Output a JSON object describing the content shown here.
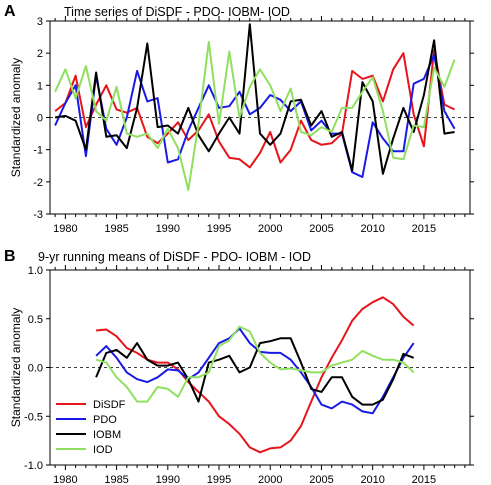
{
  "chart_data": [
    {
      "panel_label": "A",
      "title": "Time series of DiSDF - PDO- IOBM- IOD",
      "type": "line",
      "xlabel": "",
      "ylabel": "Standardized anomaly",
      "xlim": [
        1978.5,
        2019.5
      ],
      "ylim": [
        -3,
        3
      ],
      "xticks": [
        1980,
        1985,
        1990,
        1995,
        2000,
        2005,
        2010,
        2015
      ],
      "yticks": [
        -3,
        -2,
        -1,
        0,
        1,
        2,
        3
      ],
      "zero_line": "dashed",
      "x": [
        1979,
        1980,
        1981,
        1982,
        1983,
        1984,
        1985,
        1986,
        1987,
        1988,
        1989,
        1990,
        1991,
        1992,
        1993,
        1994,
        1995,
        1996,
        1997,
        1998,
        1999,
        2000,
        2001,
        2002,
        2003,
        2004,
        2005,
        2006,
        2007,
        2008,
        2009,
        2010,
        2011,
        2012,
        2013,
        2014,
        2015,
        2016,
        2017,
        2018
      ],
      "series": [
        {
          "name": "DiSDF",
          "color": "#e8141c",
          "values": [
            0.2,
            0.45,
            1.3,
            -0.3,
            0.4,
            1.0,
            0.25,
            0.15,
            0.3,
            -0.6,
            -0.8,
            -0.5,
            -0.15,
            -0.7,
            -0.4,
            0.1,
            -0.75,
            -1.25,
            -1.3,
            -1.55,
            -1.1,
            -0.45,
            -1.4,
            -1.0,
            -0.1,
            -0.7,
            -0.85,
            -0.8,
            -0.5,
            1.45,
            1.2,
            1.3,
            0.5,
            1.5,
            2.0,
            0.1,
            -0.9,
            2.1,
            0.4,
            0.25
          ]
        },
        {
          "name": "PDO",
          "color": "#1a1ae6",
          "values": [
            -0.25,
            0.45,
            1.0,
            -1.2,
            1.3,
            -0.35,
            -0.85,
            0.0,
            1.45,
            0.5,
            0.6,
            -1.4,
            -1.3,
            -0.4,
            0.3,
            1.0,
            0.3,
            0.35,
            0.8,
            0.1,
            0.3,
            0.7,
            0.55,
            0.2,
            0.5,
            -0.4,
            -0.1,
            -0.5,
            -0.5,
            -1.7,
            -1.85,
            -0.15,
            -0.65,
            -1.05,
            -1.05,
            1.05,
            1.2,
            1.95,
            0.2,
            -0.35
          ]
        },
        {
          "name": "IOBM",
          "color": "#000000",
          "values": [
            0.0,
            0.05,
            -0.1,
            -1.0,
            1.4,
            -0.6,
            -0.55,
            -0.95,
            0.3,
            2.3,
            -0.3,
            -0.25,
            -0.5,
            0.3,
            -0.55,
            -1.05,
            -0.5,
            0.0,
            -0.5,
            2.9,
            -0.5,
            -0.85,
            -0.5,
            0.5,
            0.55,
            -0.25,
            0.2,
            -0.6,
            -0.45,
            -1.65,
            1.1,
            0.5,
            -1.75,
            -0.65,
            0.3,
            -0.45,
            0.7,
            2.4,
            -0.5,
            -0.45
          ]
        },
        {
          "name": "IOD",
          "color": "#90e060",
          "values": [
            0.8,
            1.5,
            0.6,
            1.6,
            0.2,
            -0.1,
            0.95,
            -0.5,
            -0.6,
            -0.5,
            -0.95,
            -0.35,
            -0.95,
            -2.25,
            -0.2,
            2.35,
            -0.2,
            2.05,
            0.0,
            0.95,
            1.5,
            1.0,
            0.2,
            0.9,
            -0.45,
            -0.55,
            -0.3,
            -0.45,
            0.3,
            0.3,
            0.8,
            1.25,
            0.2,
            -1.25,
            -1.3,
            -0.25,
            -0.3,
            1.55,
            0.95,
            1.8
          ]
        }
      ]
    },
    {
      "panel_label": "B",
      "title": "9-yr running means of DiSDF - PDO- IOBM - IOD",
      "type": "line",
      "xlabel": "",
      "ylabel": "Standardized anomaly",
      "xlim": [
        1978.5,
        2019.5
      ],
      "ylim": [
        -1.0,
        1.0
      ],
      "xticks": [
        1980,
        1985,
        1990,
        1995,
        2000,
        2005,
        2010,
        2015
      ],
      "yticks": [
        -1.0,
        -0.5,
        0.0,
        0.5,
        1.0
      ],
      "zero_line": "dashed",
      "legend_position": "bottom-left",
      "x": [
        1983,
        1984,
        1985,
        1986,
        1987,
        1988,
        1989,
        1990,
        1991,
        1992,
        1993,
        1994,
        1995,
        1996,
        1997,
        1998,
        1999,
        2000,
        2001,
        2002,
        2003,
        2004,
        2005,
        2006,
        2007,
        2008,
        2009,
        2010,
        2011,
        2012,
        2013,
        2014
      ],
      "series": [
        {
          "name": "DiSDF",
          "color": "#e8141c",
          "values": [
            0.38,
            0.39,
            0.32,
            0.2,
            0.15,
            0.08,
            0.05,
            0.05,
            -0.02,
            -0.15,
            -0.25,
            -0.35,
            -0.5,
            -0.58,
            -0.68,
            -0.82,
            -0.87,
            -0.83,
            -0.82,
            -0.75,
            -0.6,
            -0.35,
            -0.1,
            0.1,
            0.28,
            0.48,
            0.6,
            0.67,
            0.72,
            0.65,
            0.52,
            0.43
          ]
        },
        {
          "name": "PDO",
          "color": "#1a1ae6",
          "values": [
            0.12,
            0.22,
            0.1,
            -0.05,
            -0.12,
            -0.15,
            -0.1,
            -0.02,
            -0.03,
            -0.12,
            -0.05,
            0.1,
            0.25,
            0.3,
            0.4,
            0.25,
            0.16,
            0.15,
            0.15,
            0.08,
            -0.05,
            -0.2,
            -0.38,
            -0.42,
            -0.35,
            -0.38,
            -0.45,
            -0.47,
            -0.3,
            -0.1,
            0.1,
            0.25
          ]
        },
        {
          "name": "IOBM",
          "color": "#000000",
          "values": [
            -0.1,
            0.15,
            0.18,
            0.1,
            0.25,
            0.08,
            0.02,
            0.02,
            0.05,
            -0.12,
            -0.35,
            0.05,
            0.08,
            0.12,
            -0.05,
            0.0,
            0.25,
            0.27,
            0.3,
            0.3,
            0.05,
            -0.22,
            -0.25,
            -0.1,
            -0.1,
            -0.3,
            -0.38,
            -0.38,
            -0.33,
            -0.12,
            0.14,
            0.1
          ]
        },
        {
          "name": "IOD",
          "color": "#90e060",
          "values": [
            0.08,
            0.05,
            -0.1,
            -0.2,
            -0.35,
            -0.35,
            -0.2,
            -0.22,
            -0.3,
            -0.1,
            -0.1,
            -0.05,
            0.22,
            0.28,
            0.42,
            0.37,
            0.15,
            0.05,
            -0.02,
            -0.01,
            -0.03,
            -0.05,
            -0.05,
            0.02,
            0.05,
            0.08,
            0.17,
            0.12,
            0.08,
            0.08,
            0.05,
            -0.05
          ]
        }
      ]
    }
  ]
}
